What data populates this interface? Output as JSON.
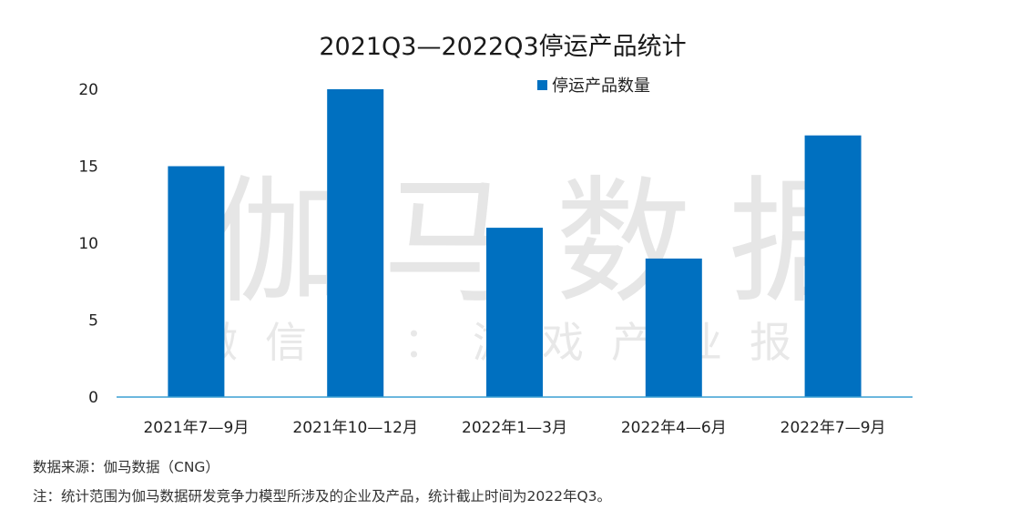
{
  "chart_data": {
    "type": "bar",
    "title": "2021Q3—2022Q3停运产品统计",
    "categories": [
      "2021年7—9月",
      "2021年10—12月",
      "2022年1—3月",
      "2022年4—6月",
      "2022年7—9月"
    ],
    "series": [
      {
        "name": "停运产品数量",
        "values": [
          15,
          20,
          11,
          9,
          17
        ]
      }
    ],
    "ylim": [
      0,
      20
    ],
    "yticks": [
      "0",
      "5",
      "10",
      "15",
      "20"
    ],
    "grid": false,
    "legend_position": "top-right",
    "color": "#0070c0",
    "axis_color": "#3b9fd4"
  },
  "watermark": {
    "main": "伽马数据",
    "sub": "微信号：游戏产业报告"
  },
  "notes": {
    "source": "数据来源：伽马数据（CNG）",
    "scope": "注：统计范围为伽马数据研发竞争力模型所涉及的企业及产品，统计截止时间为2022年Q3。"
  }
}
